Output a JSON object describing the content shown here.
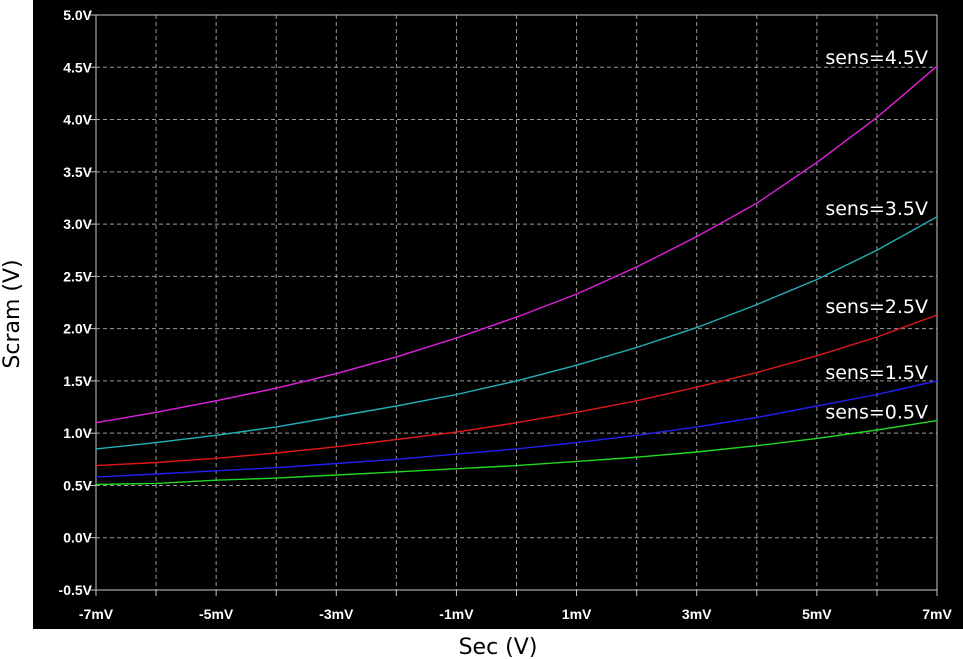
{
  "chart_data": {
    "type": "line",
    "title": "",
    "xlabel": "Sec (V)",
    "ylabel": "Scram (V)",
    "xlim": [
      -7,
      7
    ],
    "ylim": [
      -0.5,
      5.0
    ],
    "x_ticks": [
      -7,
      -6,
      -5,
      -4,
      -3,
      -2,
      -1,
      0,
      1,
      2,
      3,
      4,
      5,
      6,
      7
    ],
    "x_tick_labels": [
      "-7mV",
      "",
      "-5mV",
      "",
      "-3mV",
      "",
      "-1mV",
      "",
      "1mV",
      "",
      "3mV",
      "",
      "5mV",
      "",
      "7mV"
    ],
    "y_ticks": [
      -0.5,
      0.0,
      0.5,
      1.0,
      1.5,
      2.0,
      2.5,
      3.0,
      3.5,
      4.0,
      4.5,
      5.0
    ],
    "y_tick_labels": [
      "-0.5V",
      "0.0V",
      "0.5V",
      "1.0V",
      "1.5V",
      "2.0V",
      "2.5V",
      "3.0V",
      "3.5V",
      "4.0V",
      "4.5V",
      "5.0V"
    ],
    "grid": true,
    "background": "#000000",
    "x": [
      -7,
      -6,
      -5,
      -4,
      -3,
      -2,
      -1,
      0,
      1,
      2,
      3,
      4,
      5,
      6,
      7
    ],
    "series": [
      {
        "label": "sens=4.5V",
        "color": "#e020e0",
        "values": [
          1.1,
          1.2,
          1.31,
          1.43,
          1.57,
          1.73,
          1.91,
          2.11,
          2.33,
          2.59,
          2.88,
          3.2,
          3.59,
          4.02,
          4.51
        ]
      },
      {
        "label": "sens=3.5V",
        "color": "#20b0b8",
        "values": [
          0.85,
          0.91,
          0.98,
          1.06,
          1.16,
          1.26,
          1.37,
          1.5,
          1.65,
          1.82,
          2.01,
          2.23,
          2.47,
          2.75,
          3.07
        ]
      },
      {
        "label": "sens=2.5V",
        "color": "#e01818",
        "values": [
          0.69,
          0.72,
          0.76,
          0.81,
          0.87,
          0.94,
          1.01,
          1.1,
          1.2,
          1.31,
          1.44,
          1.58,
          1.74,
          1.92,
          2.13
        ]
      },
      {
        "label": "sens=1.5V",
        "color": "#2020f0",
        "values": [
          0.58,
          0.61,
          0.64,
          0.67,
          0.71,
          0.75,
          0.8,
          0.85,
          0.91,
          0.98,
          1.06,
          1.15,
          1.26,
          1.37,
          1.5
        ]
      },
      {
        "label": "sens=0.5V",
        "color": "#20d820",
        "values": [
          0.51,
          0.52,
          0.55,
          0.57,
          0.6,
          0.63,
          0.66,
          0.69,
          0.73,
          0.77,
          0.82,
          0.88,
          0.95,
          1.03,
          1.12
        ]
      }
    ]
  }
}
